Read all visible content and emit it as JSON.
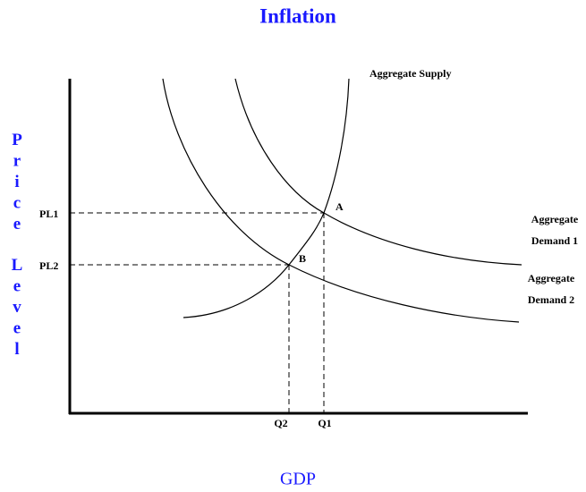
{
  "title": "Inflation",
  "y_axis_label": [
    "Price",
    "Level"
  ],
  "x_axis_label": "GDP",
  "curves": [
    {
      "label": [
        "Aggregate Supply"
      ]
    },
    {
      "label": [
        "Aggregate",
        "Demand 1"
      ]
    },
    {
      "label": [
        "Aggregate",
        "Demand 2"
      ]
    }
  ],
  "points": [
    {
      "label": "A"
    },
    {
      "label": "B"
    }
  ],
  "price_levels": [
    "PL1",
    "PL2"
  ],
  "quantities": [
    "Q1",
    "Q2"
  ]
}
